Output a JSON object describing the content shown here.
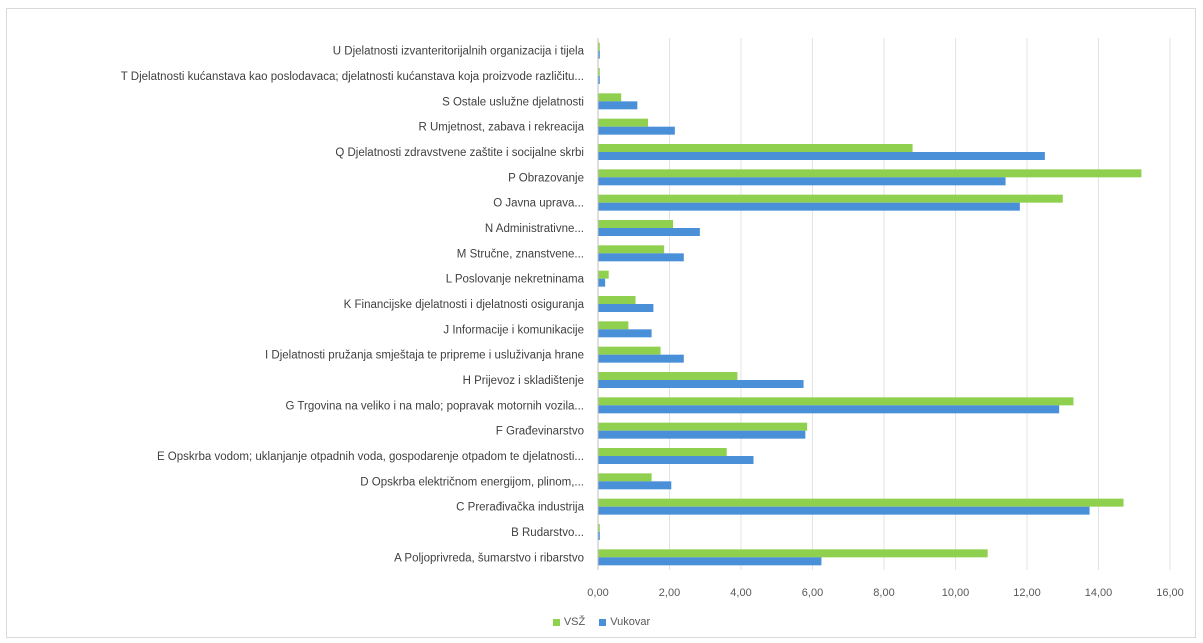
{
  "chart_data": {
    "type": "bar",
    "orientation": "horizontal",
    "categories": [
      "U Djelatnosti izvanteritorijalnih organizacija i tijela",
      "T Djelatnosti kućanstava kao poslodavaca; djelatnosti kućanstava koja proizvode različitu...",
      "S Ostale uslužne djelatnosti",
      "R Umjetnost, zabava i rekreacija",
      "Q Djelatnosti zdravstvene zaštite i socijalne skrbi",
      "P Obrazovanje",
      "O Javna uprava...",
      "N Administrativne...",
      "M Stručne, znanstvene...",
      "L Poslovanje nekretninama",
      "K Financijske djelatnosti i djelatnosti osiguranja",
      "J Informacije i komunikacije",
      "I Djelatnosti pružanja smještaja te pripreme i usluživanja hrane",
      "H Prijevoz i skladištenje",
      "G Trgovina na veliko i na malo; popravak motornih vozila...",
      "F Građevinarstvo",
      "E Opskrba vodom; uklanjanje otpadnih voda, gospodarenje otpadom te djelatnosti...",
      "D Opskrba električnom energijom, plinom,...",
      "C Prerađivačka industrija",
      "B Rudarstvo...",
      "A Poljoprivreda, šumarstvo i ribarstvo"
    ],
    "series": [
      {
        "name": "VSŽ",
        "color": "#8fd14f",
        "values": [
          0.05,
          0.05,
          0.65,
          1.4,
          8.8,
          15.2,
          13.0,
          2.1,
          1.85,
          0.3,
          1.05,
          0.85,
          1.75,
          3.9,
          13.3,
          5.85,
          3.6,
          1.5,
          14.7,
          0.05,
          10.9
        ]
      },
      {
        "name": "Vukovar",
        "color": "#4a90d9",
        "values": [
          0.05,
          0.05,
          1.1,
          2.15,
          12.5,
          11.4,
          11.8,
          2.85,
          2.4,
          0.2,
          1.55,
          1.5,
          2.4,
          5.75,
          12.9,
          5.8,
          4.35,
          2.05,
          13.75,
          0.05,
          6.25
        ]
      }
    ],
    "x_ticks": [
      "0,00",
      "2,00",
      "4,00",
      "6,00",
      "8,00",
      "10,00",
      "12,00",
      "14,00",
      "16,00"
    ],
    "xlim": [
      0,
      16
    ],
    "grid": true,
    "legend_position": "bottom",
    "title": "",
    "xlabel": "",
    "ylabel": ""
  }
}
